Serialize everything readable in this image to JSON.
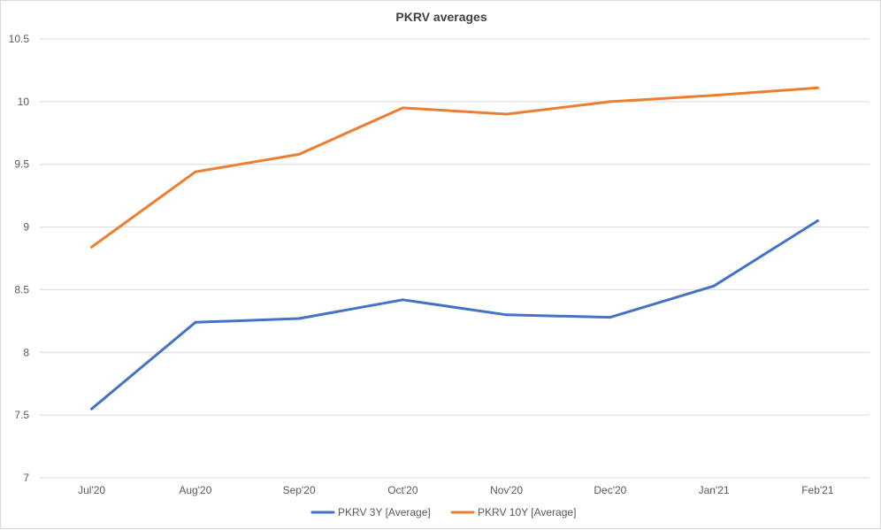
{
  "chart_data": {
    "type": "line",
    "title": "PKRV averages",
    "xlabel": "",
    "ylabel": "",
    "categories": [
      "Jul'20",
      "Aug'20",
      "Sep'20",
      "Oct'20",
      "Nov'20",
      "Dec'20",
      "Jan'21",
      "Feb'21"
    ],
    "ylim": [
      7,
      10.5
    ],
    "yticks": [
      "7",
      "7.5",
      "8",
      "8.5",
      "9",
      "9.5",
      "10",
      "10.5"
    ],
    "grid": true,
    "legend_position": "bottom",
    "series": [
      {
        "name": "PKRV 3Y [Average]",
        "color": "#4472c4",
        "values": [
          7.55,
          8.24,
          8.27,
          8.42,
          8.3,
          8.28,
          8.53,
          9.05
        ]
      },
      {
        "name": "PKRV 10Y [Average]",
        "color": "#ed7d31",
        "values": [
          8.84,
          9.44,
          9.58,
          9.95,
          9.9,
          10.0,
          10.05,
          10.11
        ]
      }
    ]
  }
}
